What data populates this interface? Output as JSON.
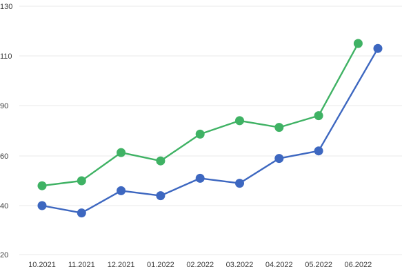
{
  "chart_data": {
    "type": "line",
    "title": "",
    "xlabel": "",
    "ylabel": "",
    "categories": [
      "10.2021",
      "11.2021",
      "12.2021",
      "01.2022",
      "02.2022",
      "03.2022",
      "04.2022",
      "05.2022",
      "06.2022"
    ],
    "y_ticks": [
      "20",
      "40",
      "60",
      "90",
      "110",
      "130"
    ],
    "grid": true,
    "legend": "none",
    "series": [
      {
        "color": "#3d67c0",
        "values": [
          40,
          37,
          46,
          44,
          51,
          49,
          59,
          63,
          113
        ],
        "points_x": [
          1,
          2,
          3,
          4,
          5,
          6,
          7,
          8,
          9.5
        ]
      },
      {
        "color": "#3fb264",
        "values": [
          48,
          50,
          62,
          58,
          73,
          81,
          77,
          84,
          115
        ],
        "points_x": [
          1,
          2,
          3,
          4,
          5,
          6,
          7,
          8,
          9
        ]
      }
    ]
  }
}
